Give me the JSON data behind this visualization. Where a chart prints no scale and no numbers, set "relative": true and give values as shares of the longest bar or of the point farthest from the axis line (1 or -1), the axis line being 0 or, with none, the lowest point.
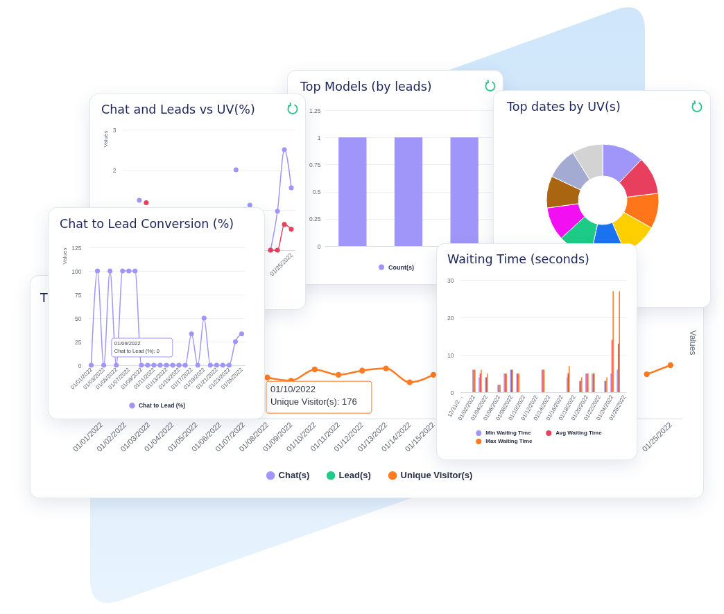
{
  "chart_data": [
    {
      "type": "line",
      "title": "Chat and Leads vs UV(%)",
      "ylabel": "Values",
      "categories": [
        null,
        null,
        null,
        null,
        null,
        null,
        null,
        null,
        null,
        null,
        null,
        null,
        null,
        null,
        null,
        null,
        null,
        null,
        null,
        null,
        null,
        null,
        null,
        null,
        "01/25/2022"
      ],
      "series": [
        {
          "color": "#a096fa",
          "values": [
            null,
            null,
            1.24,
            null,
            null,
            null,
            null,
            null,
            null,
            null,
            null,
            null,
            null,
            null,
            null,
            null,
            2,
            null,
            1.12,
            null,
            null,
            0,
            0.97,
            2.5,
            1.55
          ]
        },
        {
          "color": "#e8405e",
          "values": [
            null,
            null,
            null,
            1.18,
            null,
            null,
            null,
            null,
            null,
            null,
            null,
            null,
            null,
            null,
            null,
            null,
            null,
            null,
            null,
            null,
            null,
            0,
            0,
            0.64,
            0.52
          ]
        }
      ],
      "ylim": [
        0,
        3
      ],
      "yticks": [
        {
          "value": 0,
          "label": null
        },
        {
          "value": 1,
          "label": null
        },
        2,
        3
      ],
      "grid": "y",
      "marker": "circle"
    },
    {
      "type": "bar",
      "title": "Top Models (by leads)",
      "categories": [
        null,
        null,
        null
      ],
      "series": [
        {
          "name": "Count(s)",
          "color": "#a096fa",
          "values": [
            1,
            1,
            1
          ]
        }
      ],
      "ylim": [
        0,
        1.25
      ],
      "yticks": [
        0,
        0.25,
        0.5,
        0.75,
        1,
        1.25
      ],
      "grid": "y",
      "legend": "bottom"
    },
    {
      "type": "donut",
      "title": "Top dates by UV(s)",
      "categories": [
        null,
        null,
        null,
        null,
        null,
        null,
        null,
        null,
        null,
        null
      ],
      "values": [
        12.1,
        10.9,
        10.2,
        10.3,
        9.9,
        9.8,
        9.6,
        9.2,
        9.1,
        8.9
      ],
      "colors": [
        "#a096fa",
        "#e83f5f",
        "#ff7519",
        "#ffd000",
        "#1a74f0",
        "#1ecb86",
        "#f20ff2",
        "#a9650f",
        "#a3abd3",
        "#d3d3d3"
      ]
    },
    {
      "type": "line",
      "title": "Chat to Lead Conversion (%)",
      "ylabel": "Values",
      "categories": [
        "01/01/2022",
        null,
        "01/03/2022",
        null,
        "01/05/2022",
        null,
        "01/07/2022",
        null,
        "01/09/2022",
        null,
        "01/11/2022",
        null,
        "01/13/2022",
        null,
        "01/15/2022",
        null,
        "01/17/2022",
        null,
        "01/19/2022",
        null,
        "01/21/2022",
        null,
        "01/23/2022",
        null,
        "01/25/2022"
      ],
      "series": [
        {
          "name": "Chat to Lead (%)",
          "color": "#a096fa",
          "values": [
            0,
            100,
            0,
            100,
            0,
            100,
            100,
            100,
            0,
            0,
            0,
            0,
            0,
            0,
            0,
            0,
            33.3,
            0,
            50,
            0,
            0,
            0,
            0,
            25,
            33.3
          ]
        }
      ],
      "ylim": [
        0,
        125
      ],
      "yticks": [
        0,
        25,
        50,
        75,
        100,
        125
      ],
      "grid": "y",
      "marker": "circle",
      "legend": "bottom",
      "annotations": [
        {
          "text": "01/09/2022\nChat to Lead (%): 0",
          "x": "01/09/2022",
          "y": 0
        }
      ]
    },
    {
      "type": "bar",
      "title": "Waiting Time (seconds)",
      "categories": [
        "12/31/2…",
        null,
        "01/02/2022",
        null,
        "01/04/2022",
        null,
        "01/06/2022",
        null,
        "01/08/2022",
        null,
        "01/10/2022",
        null,
        "01/12/2022",
        null,
        "01/14/2022",
        null,
        "01/16/2022",
        null,
        "01/18/2022",
        null,
        "01/20/2022",
        null,
        "01/22/2022",
        null,
        "01/24/2022",
        null,
        "01/26/2022"
      ],
      "series": [
        {
          "name": "Min Waiting Time",
          "color": "#a096fa",
          "values": [
            null,
            null,
            6,
            4,
            4,
            null,
            2,
            5,
            6,
            5,
            null,
            null,
            null,
            6,
            null,
            null,
            null,
            4,
            null,
            3,
            5,
            5,
            null,
            3,
            5,
            6,
            null
          ]
        },
        {
          "name": "Avg Waiting Time",
          "color": "#e8405e",
          "values": [
            null,
            null,
            6,
            5,
            4,
            null,
            2,
            5,
            6,
            5,
            null,
            null,
            null,
            6,
            null,
            null,
            null,
            5,
            null,
            3,
            5,
            5,
            null,
            3,
            14,
            13,
            null
          ]
        },
        {
          "name": "Max Waiting Time",
          "color": "#ff7a21",
          "values": [
            null,
            null,
            6,
            6,
            5,
            null,
            2,
            5,
            6,
            5,
            null,
            null,
            null,
            6,
            null,
            null,
            null,
            7,
            null,
            4,
            5,
            5,
            null,
            4,
            27,
            27,
            null
          ]
        }
      ],
      "ylim": [
        0,
        30
      ],
      "yticks": [
        0,
        10,
        20,
        30
      ],
      "grid": "y",
      "legend": "bottom"
    },
    {
      "type": "line",
      "title": "T",
      "ylabel": "Values",
      "relative": true,
      "categories": [
        "01/01/2022",
        "01/02/2022",
        "01/03/2022",
        "01/04/2022",
        "01/05/2022",
        "01/06/2022",
        "01/07/2022",
        "01/08/2022",
        "01/09/2022",
        "01/10/2022",
        "01/11/2022",
        "01/12/2022",
        "01/13/2022",
        "01/14/2022",
        "01/15/2022",
        null,
        null,
        null,
        null,
        null,
        null,
        null,
        null,
        null,
        "01/25/2022"
      ],
      "series": [
        {
          "name": "Chat(s)",
          "color": "#a096fa",
          "values": [
            null,
            null,
            null,
            null,
            null,
            null,
            null,
            null,
            null,
            null,
            null,
            null,
            null,
            null,
            null,
            null,
            null,
            null,
            null,
            null,
            null,
            null,
            null,
            null,
            null
          ]
        },
        {
          "name": "Lead(s)",
          "color": "#1fcb8a",
          "values": [
            null,
            null,
            null,
            null,
            null,
            null,
            null,
            null,
            null,
            null,
            null,
            null,
            null,
            null,
            null,
            null,
            null,
            null,
            null,
            null,
            null,
            null,
            null,
            null,
            null
          ]
        },
        {
          "name": "Unique Visitor(s)",
          "color": "#ff7a21",
          "values": [
            null,
            null,
            null,
            null,
            null,
            null,
            null,
            0.77,
            0.71,
            0.92,
            0.82,
            0.9,
            0.94,
            0.68,
            0.82,
            null,
            null,
            null,
            null,
            null,
            null,
            null,
            null,
            0.83,
            1
          ]
        }
      ],
      "marker": "circle",
      "legend": "bottom",
      "annotations": [
        {
          "text": "01/10/2022\nUnique Visitor(s): 176",
          "x": "01/10/2022",
          "y": 0.92
        }
      ]
    }
  ]
}
